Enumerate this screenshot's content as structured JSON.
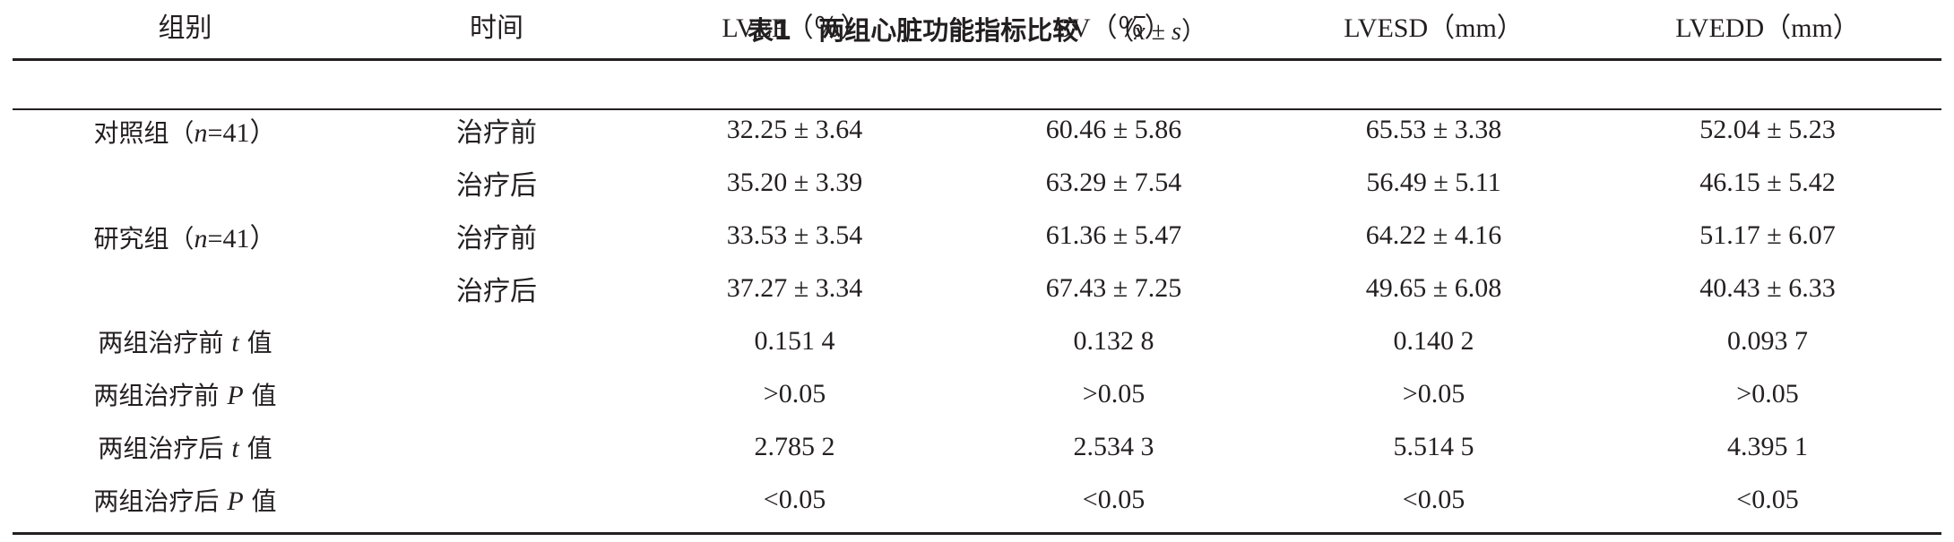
{
  "caption": {
    "label": "表1",
    "title": "两组心脏功能指标比较",
    "note_open": "（",
    "note_xbar": "x",
    "note_pm": " ± ",
    "note_s": "s",
    "note_close": "）"
  },
  "table": {
    "headers": [
      "组别",
      "时间",
      "LVEF（％）",
      "SV（％）",
      "LVESD（mm）",
      "LVEDD（mm）"
    ],
    "rows": [
      {
        "group": "对照组（",
        "group_n": "n",
        "group_rest": "=41）",
        "time": "治疗前",
        "values": [
          "32.25 ± 3.64",
          "60.46 ± 5.86",
          "65.53 ± 3.38",
          "52.04 ± 5.23"
        ]
      },
      {
        "group": "",
        "group_n": "",
        "group_rest": "",
        "time": "治疗后",
        "values": [
          "35.20 ± 3.39",
          "63.29 ± 7.54",
          "56.49 ± 5.11",
          "46.15 ± 5.42"
        ]
      },
      {
        "group": "研究组（",
        "group_n": "n",
        "group_rest": "=41）",
        "time": "治疗前",
        "values": [
          "33.53 ± 3.54",
          "61.36 ± 5.47",
          "64.22 ± 4.16",
          "51.17 ± 6.07"
        ]
      },
      {
        "group": "",
        "group_n": "",
        "group_rest": "",
        "time": "治疗后",
        "values": [
          "37.27 ± 3.34",
          "67.43 ± 7.25",
          "49.65 ± 6.08",
          "40.43 ± 6.33"
        ]
      }
    ],
    "stats": [
      {
        "prefix": "两组治疗前 ",
        "symbol": "t",
        "suffix": " 值",
        "values": [
          "0.151 4",
          "0.132 8",
          "0.140 2",
          "0.093 7"
        ]
      },
      {
        "prefix": "两组治疗前 ",
        "symbol": "P",
        "suffix": " 值",
        "values": [
          ">0.05",
          ">0.05",
          ">0.05",
          ">0.05"
        ]
      },
      {
        "prefix": "两组治疗后 ",
        "symbol": "t",
        "suffix": " 值",
        "values": [
          "2.785 2",
          "2.534 3",
          "5.514 5",
          "4.395 1"
        ]
      },
      {
        "prefix": "两组治疗后 ",
        "symbol": "P",
        "suffix": " 值",
        "values": [
          "<0.05",
          "<0.05",
          "<0.05",
          "<0.05"
        ]
      }
    ]
  }
}
